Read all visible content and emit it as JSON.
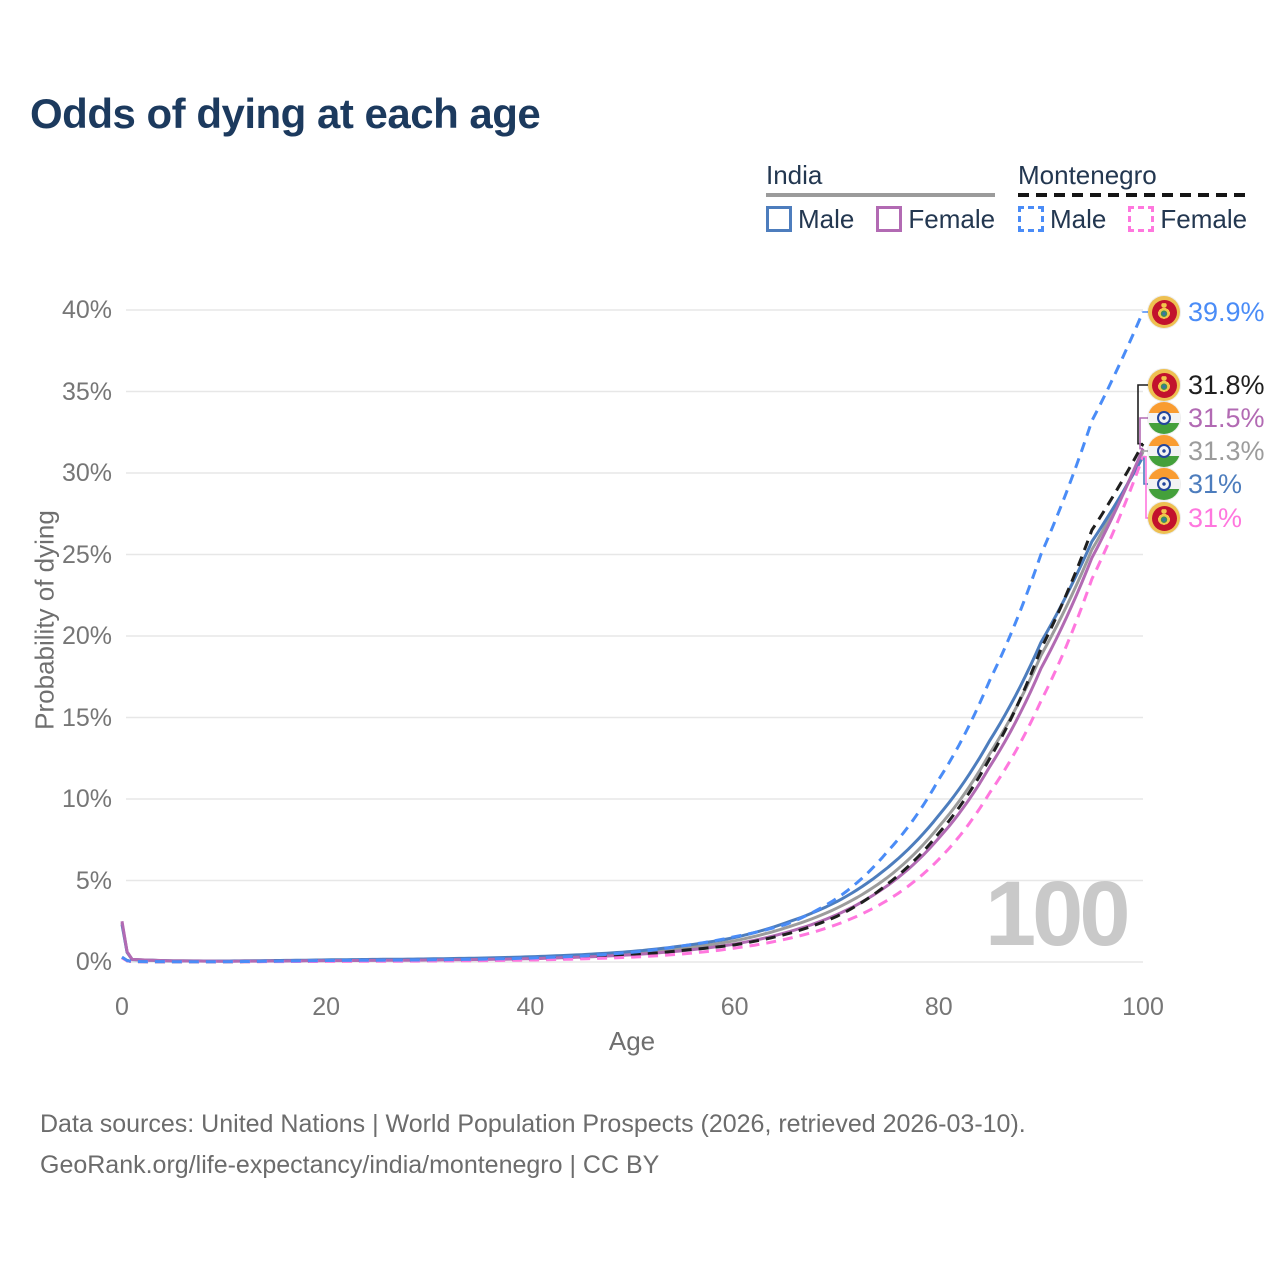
{
  "title": "Odds of dying at each age",
  "watermark": "100",
  "legend": {
    "groups": [
      {
        "label": "India",
        "line_style": "solid",
        "underline_color": "#9b9b9b",
        "items": [
          {
            "label": "Male",
            "color": "#4d7dbd"
          },
          {
            "label": "Female",
            "color": "#b26ab3"
          }
        ]
      },
      {
        "label": "Montenegro",
        "line_style": "dashed",
        "underline_color": "#151515",
        "items": [
          {
            "label": "Male",
            "color": "#4a8cf7"
          },
          {
            "label": "Female",
            "color": "#ff77de"
          }
        ]
      }
    ]
  },
  "axes": {
    "y": {
      "title": "Probability of dying",
      "ticks": [
        "0%",
        "5%",
        "10%",
        "15%",
        "20%",
        "25%",
        "30%",
        "35%",
        "40%"
      ]
    },
    "x": {
      "title": "Age",
      "ticks": [
        "0",
        "20",
        "40",
        "60",
        "80",
        "100"
      ]
    }
  },
  "end_labels": [
    {
      "text": "39.9%",
      "series": "montenegro-male",
      "flag": "montenegro",
      "color": "#4a8cf7"
    },
    {
      "text": "31.8%",
      "series": "montenegro-both",
      "flag": "montenegro",
      "color": "#1f1f1f"
    },
    {
      "text": "31.5%",
      "series": "india-female",
      "flag": "india",
      "color": "#b26ab3"
    },
    {
      "text": "31.3%",
      "series": "india-both",
      "flag": "india",
      "color": "#9c9c9c"
    },
    {
      "text": "31%",
      "series": "india-male",
      "flag": "india",
      "color": "#4d7dbd"
    },
    {
      "text": "31%",
      "series": "montenegro-female",
      "flag": "montenegro",
      "color": "#ff77de"
    }
  ],
  "source": {
    "line1": "Data sources: United Nations | World Population Prospects (2026, retrieved 2026-03-10).",
    "line2": "GeoRank.org/life-expectancy/india/montenegro | CC BY"
  },
  "chart_data": {
    "type": "line",
    "title": "Odds of dying at each age",
    "xlabel": "Age",
    "ylabel": "Probability of dying",
    "xlim": [
      0,
      100
    ],
    "ylim_pct": [
      0,
      40
    ],
    "x_ticks": [
      0,
      20,
      40,
      60,
      80,
      100
    ],
    "y_ticks_pct": [
      0,
      5,
      10,
      15,
      20,
      25,
      30,
      35,
      40
    ],
    "grid": "horizontal-only",
    "legend_position": "top-right",
    "ages": [
      0,
      1,
      5,
      10,
      15,
      20,
      25,
      30,
      35,
      40,
      45,
      50,
      55,
      60,
      65,
      70,
      75,
      80,
      85,
      90,
      95,
      100
    ],
    "series": [
      {
        "key": "india-both",
        "name": "India Both sexes",
        "country": "India",
        "sex": "both",
        "color": "#9c9c9c",
        "dash": "solid",
        "values_pct": [
          2.4,
          0.155,
          0.07,
          0.055,
          0.075,
          0.105,
          0.13,
          0.155,
          0.195,
          0.26,
          0.37,
          0.55,
          0.85,
          1.3,
          2.1,
          3.3,
          5.2,
          8.3,
          12.8,
          18.8,
          25.3,
          31.3
        ],
        "end_value_pct": 31.3
      },
      {
        "key": "india-male",
        "name": "India Male",
        "country": "India",
        "sex": "male",
        "color": "#4d7dbd",
        "dash": "solid",
        "values_pct": [
          2.3,
          0.15,
          0.07,
          0.06,
          0.09,
          0.13,
          0.16,
          0.19,
          0.24,
          0.32,
          0.45,
          0.65,
          1.0,
          1.5,
          2.4,
          3.7,
          5.8,
          9.0,
          13.6,
          19.6,
          25.8,
          31.0
        ],
        "end_value_pct": 31.0
      },
      {
        "key": "india-female",
        "name": "India Female",
        "country": "India",
        "sex": "female",
        "color": "#b26ab3",
        "dash": "solid",
        "values_pct": [
          2.5,
          0.16,
          0.07,
          0.05,
          0.06,
          0.08,
          0.1,
          0.12,
          0.15,
          0.2,
          0.3,
          0.45,
          0.7,
          1.1,
          1.8,
          2.9,
          4.7,
          7.6,
          12.0,
          18.0,
          24.8,
          31.5
        ],
        "end_value_pct": 31.5
      },
      {
        "key": "montenegro-both",
        "name": "Montenegro Both sexes",
        "country": "Montenegro",
        "sex": "both",
        "color": "#1f1f1f",
        "dash": "dashed",
        "values_pct": [
          0.28,
          0.025,
          0.015,
          0.016,
          0.037,
          0.06,
          0.075,
          0.09,
          0.12,
          0.17,
          0.27,
          0.44,
          0.72,
          1.05,
          1.7,
          2.8,
          4.8,
          7.9,
          12.5,
          19.2,
          26.5,
          31.8
        ],
        "end_value_pct": 31.8
      },
      {
        "key": "montenegro-female",
        "name": "Montenegro Female",
        "country": "Montenegro",
        "sex": "female",
        "color": "#ff77de",
        "dash": "dashed",
        "values_pct": [
          0.25,
          0.02,
          0.01,
          0.012,
          0.025,
          0.035,
          0.045,
          0.06,
          0.08,
          0.12,
          0.19,
          0.3,
          0.5,
          0.85,
          1.4,
          2.3,
          3.8,
          6.3,
          10.4,
          16.0,
          23.5,
          31.0
        ],
        "end_value_pct": 31.0
      },
      {
        "key": "montenegro-male",
        "name": "Montenegro Male",
        "country": "Montenegro",
        "sex": "male",
        "color": "#4a8cf7",
        "dash": "dashed",
        "values_pct": [
          0.3,
          0.03,
          0.02,
          0.02,
          0.05,
          0.09,
          0.11,
          0.13,
          0.17,
          0.24,
          0.37,
          0.6,
          1.0,
          1.55,
          2.3,
          3.9,
          6.8,
          11.2,
          17.3,
          25.0,
          33.2,
          39.9
        ],
        "end_value_pct": 39.9
      }
    ]
  }
}
